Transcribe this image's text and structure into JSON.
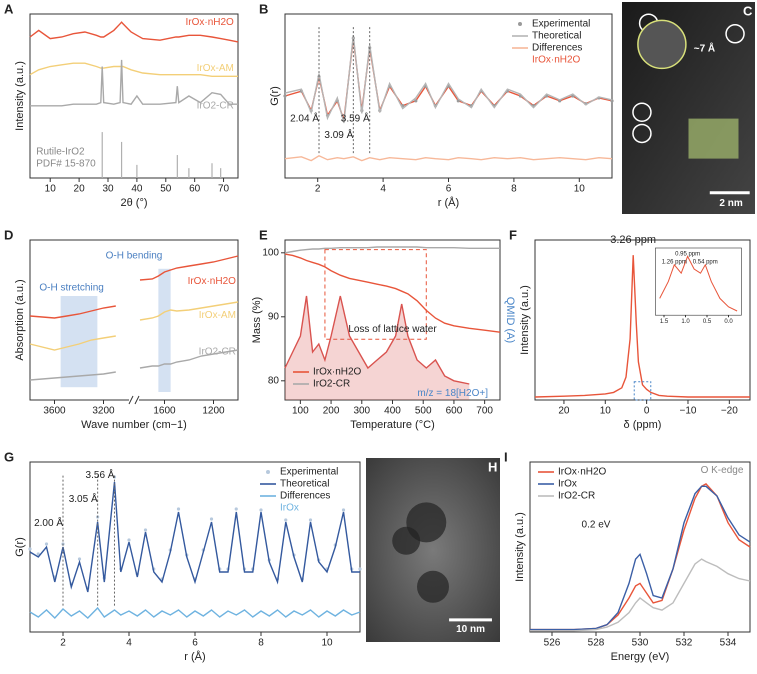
{
  "chart_data": [
    {
      "type": "line",
      "panel": "A",
      "xlabel": "2θ (°)",
      "ylabel": "Intensity (a.u.)",
      "xlim": [
        3,
        75
      ],
      "ylim": [
        0,
        100
      ],
      "xticks": [
        10,
        20,
        30,
        40,
        50,
        60,
        70
      ],
      "legend": "inline",
      "x": [
        3,
        6,
        10,
        14,
        18,
        22,
        26,
        27.5,
        28,
        28.5,
        32,
        34.2,
        34.7,
        35.2,
        38,
        40,
        42,
        48,
        53.5,
        54,
        54.5,
        58,
        62,
        66,
        69,
        72,
        75
      ],
      "series": [
        {
          "name": "IrOx·nH2O",
          "color": "#e8553a",
          "values": [
            86,
            90,
            85,
            86,
            88,
            89,
            87,
            86,
            86,
            86,
            90,
            94,
            95,
            94,
            89,
            87,
            85,
            84,
            86,
            86,
            86,
            87,
            87,
            86,
            85,
            84,
            83
          ]
        },
        {
          "name": "IrOx-AM",
          "color": "#f3cf78",
          "values": [
            63,
            66,
            68,
            69,
            70,
            70,
            68,
            67,
            67,
            67,
            68,
            68,
            68,
            68,
            66,
            65,
            64,
            63,
            63,
            63,
            63,
            63,
            63,
            62,
            62,
            62,
            62
          ]
        },
        {
          "name": "IrO2-CR",
          "color": "#a9a9a9",
          "values": [
            44,
            44,
            44,
            44,
            45,
            45,
            45,
            46,
            68,
            46,
            45,
            46,
            72,
            46,
            45,
            50,
            45,
            45,
            46,
            56,
            46,
            50,
            46,
            52,
            51,
            45,
            45
          ]
        }
      ],
      "reference": {
        "labels": [
          "Rutile-IrO2",
          "PDF# 15-870"
        ],
        "color": "#b0b0b0",
        "x": [
          28,
          34.7,
          40,
          54,
          58,
          66,
          69
        ],
        "values": [
          28,
          22,
          8,
          14,
          6,
          9,
          6
        ]
      }
    },
    {
      "type": "line",
      "panel": "B",
      "xlabel": "r (Å)",
      "ylabel": "G(r)",
      "xlim": [
        1,
        11
      ],
      "ylim": [
        -8,
        9
      ],
      "xticks": [
        2,
        4,
        6,
        8,
        10
      ],
      "legend": "upper right",
      "legend_note": "IrOx·nH2O",
      "legend_note_color": "#e8553a",
      "peak_lines": true,
      "x": [
        1,
        1.5,
        1.8,
        2.04,
        2.3,
        2.6,
        2.8,
        3.09,
        3.35,
        3.59,
        3.9,
        4.2,
        4.6,
        5.0,
        5.3,
        5.6,
        6.0,
        6.3,
        6.7,
        7.0,
        7.4,
        7.8,
        8.2,
        8.6,
        9.0,
        9.4,
        9.8,
        10.2,
        10.6,
        11
      ],
      "series": [
        {
          "name": "Experimental",
          "color": "#9a9a9a",
          "line_color": "#e8553a",
          "style": "dots",
          "values": [
            0.5,
            1,
            -1,
            2.5,
            -1.5,
            0,
            -2,
            6.5,
            -1,
            5.5,
            -1,
            1.5,
            -0.5,
            0,
            1.5,
            -0.5,
            1.5,
            0,
            -0.5,
            1,
            -0.5,
            1,
            0.5,
            -0.5,
            0.5,
            0,
            0.5,
            -0.3,
            0.3,
            0
          ]
        },
        {
          "name": "Theoretical",
          "color": "#b5b5b5",
          "values": [
            0.8,
            1.2,
            -1.2,
            2.8,
            -1.8,
            0.3,
            -2.3,
            6.8,
            -1.3,
            5.8,
            -1.2,
            1.8,
            -0.8,
            0.3,
            1.8,
            -0.7,
            1.8,
            0.2,
            -0.7,
            1.2,
            -0.7,
            1.2,
            0.7,
            -0.7,
            0.7,
            0.1,
            0.7,
            -0.4,
            0.4,
            0.1
          ]
        },
        {
          "name": "Differences",
          "color": "#f7b899",
          "values": [
            -6,
            -5.8,
            -6.2,
            -5.7,
            -6.1,
            -5.9,
            -6,
            -5.8,
            -6.2,
            -5.9,
            -6.1,
            -5.9,
            -6,
            -6.1,
            -5.9,
            -6,
            -6.1,
            -5.9,
            -6,
            -6.1,
            -5.9,
            -6,
            -5.9,
            -6.1,
            -6,
            -5.9,
            -6,
            -6.1,
            -5.9,
            -6
          ]
        }
      ],
      "peaks": [
        {
          "value": 2.04,
          "label": "2.04 Å"
        },
        {
          "value": 3.09,
          "label": "3.09 Å"
        },
        {
          "value": 3.59,
          "label": "3.59 Å"
        }
      ]
    },
    {
      "type": "image",
      "panel": "C",
      "annotations": [
        "~7 Å",
        "2 nm"
      ]
    },
    {
      "type": "line",
      "panel": "D",
      "xlabel": "Wave number (cm−1)",
      "ylabel": "Absorption (a.u.)",
      "xlim": [
        3800,
        1000
      ],
      "xbreak": [
        3000,
        1800
      ],
      "ylim": [
        20,
        100
      ],
      "xticks": [
        3600,
        3200,
        1600,
        1200
      ],
      "legend": "inline",
      "bands": [
        [
          3550,
          3250
        ],
        [
          1650,
          1550
        ]
      ],
      "band_color": "#c9d9ef",
      "annotations": [
        "O-H stretching",
        "O-H bending"
      ],
      "annotation_colors": [
        "#4a7fc1",
        "#4a7fc1"
      ],
      "x": [
        3800,
        3600,
        3500,
        3400,
        3300,
        3200,
        3100,
        1800,
        1700,
        1650,
        1600,
        1550,
        1500,
        1400,
        1300,
        1200,
        1100,
        1000
      ],
      "series": [
        {
          "name": "IrOx·nH2O",
          "color": "#e8553a",
          "values": [
            62,
            61,
            62,
            63,
            64.5,
            66,
            67,
            80,
            80.5,
            82,
            84,
            85,
            86,
            87,
            88,
            89,
            90.5,
            92
          ]
        },
        {
          "name": "IrOx-AM",
          "color": "#f3cf78",
          "values": [
            48,
            45,
            46.5,
            48,
            50,
            51,
            52,
            60,
            61,
            62,
            64,
            65,
            64.5,
            65,
            66,
            67,
            68,
            69
          ]
        },
        {
          "name": "IrO2-CR",
          "color": "#a9a9a9",
          "values": [
            30,
            31,
            31.5,
            32,
            32.5,
            33,
            34,
            36,
            37,
            37,
            38,
            38,
            39,
            40,
            42,
            43,
            44,
            45
          ]
        }
      ]
    },
    {
      "type": "line",
      "panel": "E",
      "xlabel": "Temperature (°C)",
      "ylabel": "Mass (%)",
      "y2label": "QMID (A)",
      "y2color": "#4a86c8",
      "xlim": [
        50,
        750
      ],
      "ylim": [
        77,
        102
      ],
      "y2lim": [
        0,
        10
      ],
      "xticks": [
        100,
        200,
        300,
        400,
        500,
        600,
        700
      ],
      "yticks": [
        80,
        90,
        100
      ],
      "legend": "lower left",
      "region": [
        180,
        510
      ],
      "annotations": [
        "Loss of lattice water",
        "m/z = 18[H2O+]"
      ],
      "annotation_colors": [
        "#222222",
        "#4a86c8"
      ],
      "x": [
        50,
        75,
        100,
        120,
        140,
        160,
        180,
        200,
        230,
        260,
        290,
        320,
        350,
        380,
        410,
        430,
        450,
        480,
        510,
        540,
        570,
        600,
        650,
        700,
        750
      ],
      "series": [
        {
          "name": "IrOx·nH2O",
          "color": "#e8553a",
          "values": [
            99.8,
            99.6,
            99.2,
            98.8,
            98.5,
            98.2,
            97.8,
            97.2,
            96.5,
            96,
            95.7,
            95.4,
            95.1,
            94.8,
            94.4,
            94,
            93.6,
            92.5,
            91,
            89.8,
            89,
            88.6,
            88.2,
            87.9,
            87.6
          ]
        },
        {
          "name": "IrO2-CR",
          "color": "#a9a9a9",
          "values": [
            100,
            100.2,
            100.4,
            100.5,
            100.6,
            100.6,
            100.7,
            100.7,
            100.8,
            100.8,
            100.8,
            100.8,
            100.9,
            100.9,
            100.9,
            100.9,
            100.9,
            100.9,
            100.8,
            100.8,
            100.8,
            100.8,
            100.7,
            100.7,
            100.7
          ]
        },
        {
          "color": "#d9534f",
          "axis": "y2",
          "fill": true,
          "values": [
            2,
            3,
            4,
            6.5,
            3,
            3.5,
            2.5,
            4,
            6.5,
            4,
            3,
            2,
            2.5,
            3,
            4,
            6,
            4,
            2.5,
            2,
            2.5,
            1.5,
            1.2,
            1,
            null,
            null
          ]
        }
      ]
    },
    {
      "type": "line",
      "panel": "F",
      "xlabel": "δ (ppm)",
      "ylabel": "Intensity (a.u.)",
      "xlim": [
        27,
        -25
      ],
      "ylim": [
        0,
        105
      ],
      "xticks": [
        20,
        10,
        0,
        {
          "value": -10,
          "label": "−10"
        },
        {
          "value": -20,
          "label": "−20"
        }
      ],
      "x": [
        27,
        20,
        15,
        10,
        8,
        6,
        5,
        4,
        3.26,
        2.5,
        2,
        1,
        0,
        -1,
        -3,
        -5,
        -10,
        -15,
        -20,
        -25
      ],
      "series": [
        {
          "color": "#e8553a",
          "values": [
            2,
            2.5,
            3,
            4,
            5,
            8,
            15,
            40,
            95,
            50,
            25,
            10,
            7,
            5,
            3,
            2.5,
            2,
            2,
            2,
            2
          ]
        }
      ],
      "peaks": [
        {
          "value": 3.26,
          "label": "3.26 ppm"
        }
      ],
      "inset": {
        "xlim": [
          1.7,
          -0.3
        ],
        "ylim": [
          0,
          8
        ],
        "xticks": [
          1.5,
          {
            "value": 1,
            "label": "1.0"
          },
          0.5,
          {
            "value": 0,
            "label": "0.0"
          }
        ],
        "x": [
          1.6,
          1.4,
          1.26,
          1.1,
          0.95,
          0.8,
          0.65,
          0.54,
          0.4,
          0.2,
          0,
          -0.2
        ],
        "values": [
          2,
          4,
          6,
          5,
          7,
          5.5,
          5,
          6,
          4,
          2,
          1,
          0.5
        ],
        "peaks": [
          {
            "value": 1.26,
            "label": "1.26 ppm"
          },
          {
            "value": 0.95,
            "label": "0.95 ppm"
          },
          {
            "value": 0.54,
            "label": "0.54 ppm"
          }
        ]
      }
    },
    {
      "type": "line",
      "panel": "G",
      "xlabel": "r (Å)",
      "ylabel": "G(r)",
      "xlim": [
        1,
        11
      ],
      "ylim": [
        -7,
        10
      ],
      "xticks": [
        2,
        4,
        6,
        8,
        10
      ],
      "legend": "upper right",
      "legend_note": "IrOx",
      "legend_note_color": "#6fb3e0",
      "peak_lines": true,
      "x": [
        1,
        1.25,
        1.5,
        1.75,
        2.0,
        2.25,
        2.5,
        2.75,
        3.05,
        3.25,
        3.56,
        3.75,
        4.0,
        4.25,
        4.5,
        4.75,
        5.0,
        5.25,
        5.5,
        5.75,
        6.0,
        6.25,
        6.5,
        6.75,
        7.0,
        7.25,
        7.5,
        7.75,
        8.0,
        8.25,
        8.5,
        8.75,
        9.0,
        9.25,
        9.5,
        9.75,
        10.0,
        10.25,
        10.5,
        10.75,
        11
      ],
      "series": [
        {
          "name": "Experimental",
          "color": "#b7c9dd",
          "style": "dots",
          "values": [
            1.3,
            0.8,
            1.8,
            -1.5,
            1.8,
            -2.2,
            0.3,
            -2.6,
            4.5,
            -1.6,
            8.5,
            -0.7,
            2.2,
            -1.2,
            3.2,
            -0.7,
            -1.7,
            1.2,
            5.3,
            0.7,
            -1.7,
            1.2,
            4.3,
            -0.7,
            -0.7,
            5.3,
            -0.7,
            -0.7,
            5.2,
            0.2,
            -1.7,
            4.2,
            0.7,
            -1.7,
            4.2,
            0.2,
            -0.7,
            1.7,
            5.2,
            -0.7,
            -0.7
          ]
        },
        {
          "name": "Theoretical",
          "color": "#34599e",
          "values": [
            1,
            0.5,
            1.5,
            -2,
            1.5,
            -2.5,
            0,
            -3,
            4,
            -2,
            8,
            -1,
            2,
            -1.5,
            3,
            -1,
            -2,
            1,
            5,
            0.5,
            -2,
            1,
            4,
            -1,
            -1,
            5,
            -1,
            -1,
            5,
            0,
            -2,
            4,
            0.5,
            -2,
            4,
            0,
            -1,
            1.5,
            5,
            -1,
            -1
          ]
        },
        {
          "name": "Differences",
          "color": "#6fb3e0",
          "values": [
            -5,
            -5.5,
            -4.8,
            -5.6,
            -4.7,
            -5.4,
            -4.9,
            -5.6,
            -4.6,
            -5.5,
            -4.8,
            -5.3,
            -4.9,
            -5.4,
            -4.8,
            -5.5,
            -4.9,
            -5.3,
            -4.8,
            -5.5,
            -4.9,
            -5.4,
            -4.8,
            -5.5,
            -4.9,
            -5.3,
            -4.8,
            -5.5,
            -4.9,
            -5.4,
            -4.8,
            -5.5,
            -4.9,
            -5.3,
            -4.8,
            -5.5,
            -4.9,
            -5.4,
            -4.8,
            -5.3,
            -5
          ]
        }
      ],
      "peaks": [
        {
          "value": 2.0,
          "label": "2.00 Å"
        },
        {
          "value": 3.05,
          "label": "3.05 Å"
        },
        {
          "value": 3.56,
          "label": "3.56 Å"
        }
      ]
    },
    {
      "type": "image",
      "panel": "H",
      "annotations": [
        "10 nm"
      ]
    },
    {
      "type": "line",
      "panel": "I",
      "xlabel": "Energy (eV)",
      "ylabel": "Intensity (a.u.)",
      "xlim": [
        525,
        535
      ],
      "ylim": [
        0,
        70
      ],
      "xticks": [
        526,
        528,
        530,
        532,
        534
      ],
      "legend": "upper left",
      "annotations": [
        "O K-edge",
        "0.2 eV"
      ],
      "annotation_colors": [
        "#888888",
        "#222222"
      ],
      "x": [
        525,
        526,
        527,
        528,
        528.5,
        529,
        529.5,
        529.8,
        530,
        530.3,
        530.6,
        531,
        531.5,
        532,
        532.5,
        532.8,
        533,
        533.5,
        534,
        534.5,
        535
      ],
      "series": [
        {
          "name": "IrOx·nH2O",
          "color": "#e8553a",
          "values": [
            1,
            1,
            1,
            1.5,
            3,
            7,
            14,
            19,
            20,
            16,
            12,
            13,
            26,
            42,
            55,
            60,
            61,
            56,
            45,
            38,
            35
          ]
        },
        {
          "name": "IrOx",
          "color": "#3b5fa6",
          "values": [
            1,
            1,
            1,
            1.5,
            3,
            8,
            20,
            30,
            32,
            24,
            15,
            14,
            26,
            45,
            57,
            60,
            60,
            56,
            47,
            40,
            37
          ]
        },
        {
          "name": "IrO2-CR",
          "color": "#bdbdbd",
          "values": [
            0.5,
            0.5,
            0.5,
            1,
            2,
            4,
            8,
            12,
            14,
            12,
            10,
            9,
            12,
            20,
            28,
            30,
            29,
            27,
            24,
            22,
            21
          ]
        }
      ]
    }
  ]
}
